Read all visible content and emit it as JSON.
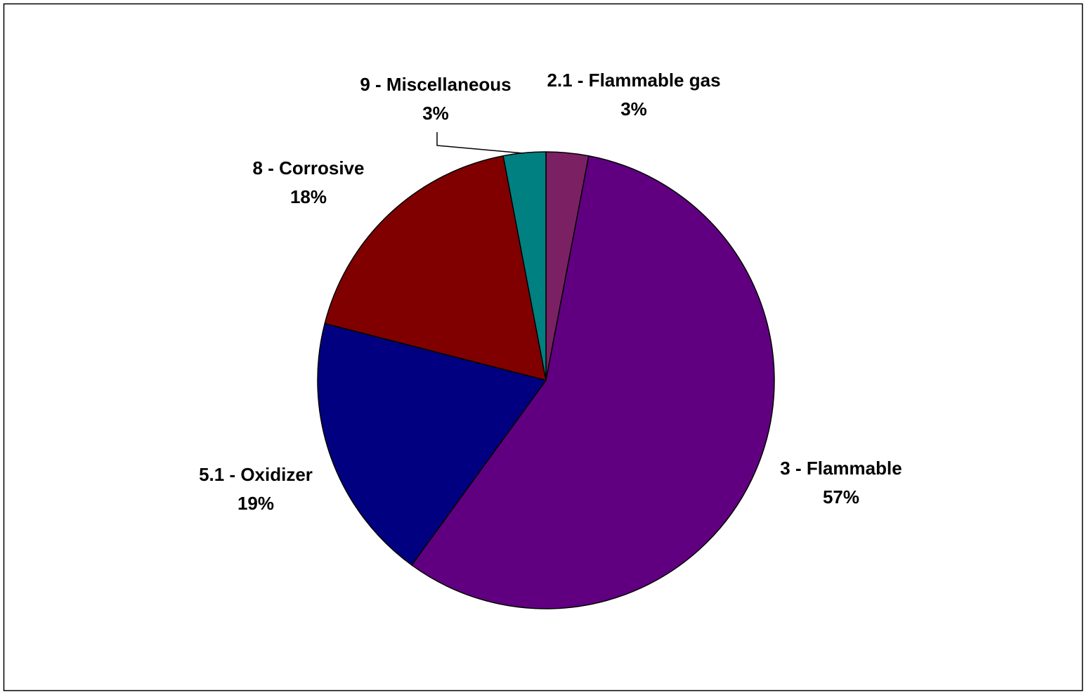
{
  "chart_data": {
    "type": "pie",
    "categories": [
      "2.1 - Flammable gas",
      "3 - Flammable",
      "5.1 - Oxidizer",
      "8 - Corrosive",
      "9 - Miscellaneous"
    ],
    "values": [
      3,
      57,
      19,
      18,
      3
    ],
    "value_labels": [
      "3%",
      "57%",
      "19%",
      "18%",
      "3%"
    ],
    "colors": [
      "#7b2163",
      "#600080",
      "#000080",
      "#800000",
      "#008080"
    ]
  }
}
